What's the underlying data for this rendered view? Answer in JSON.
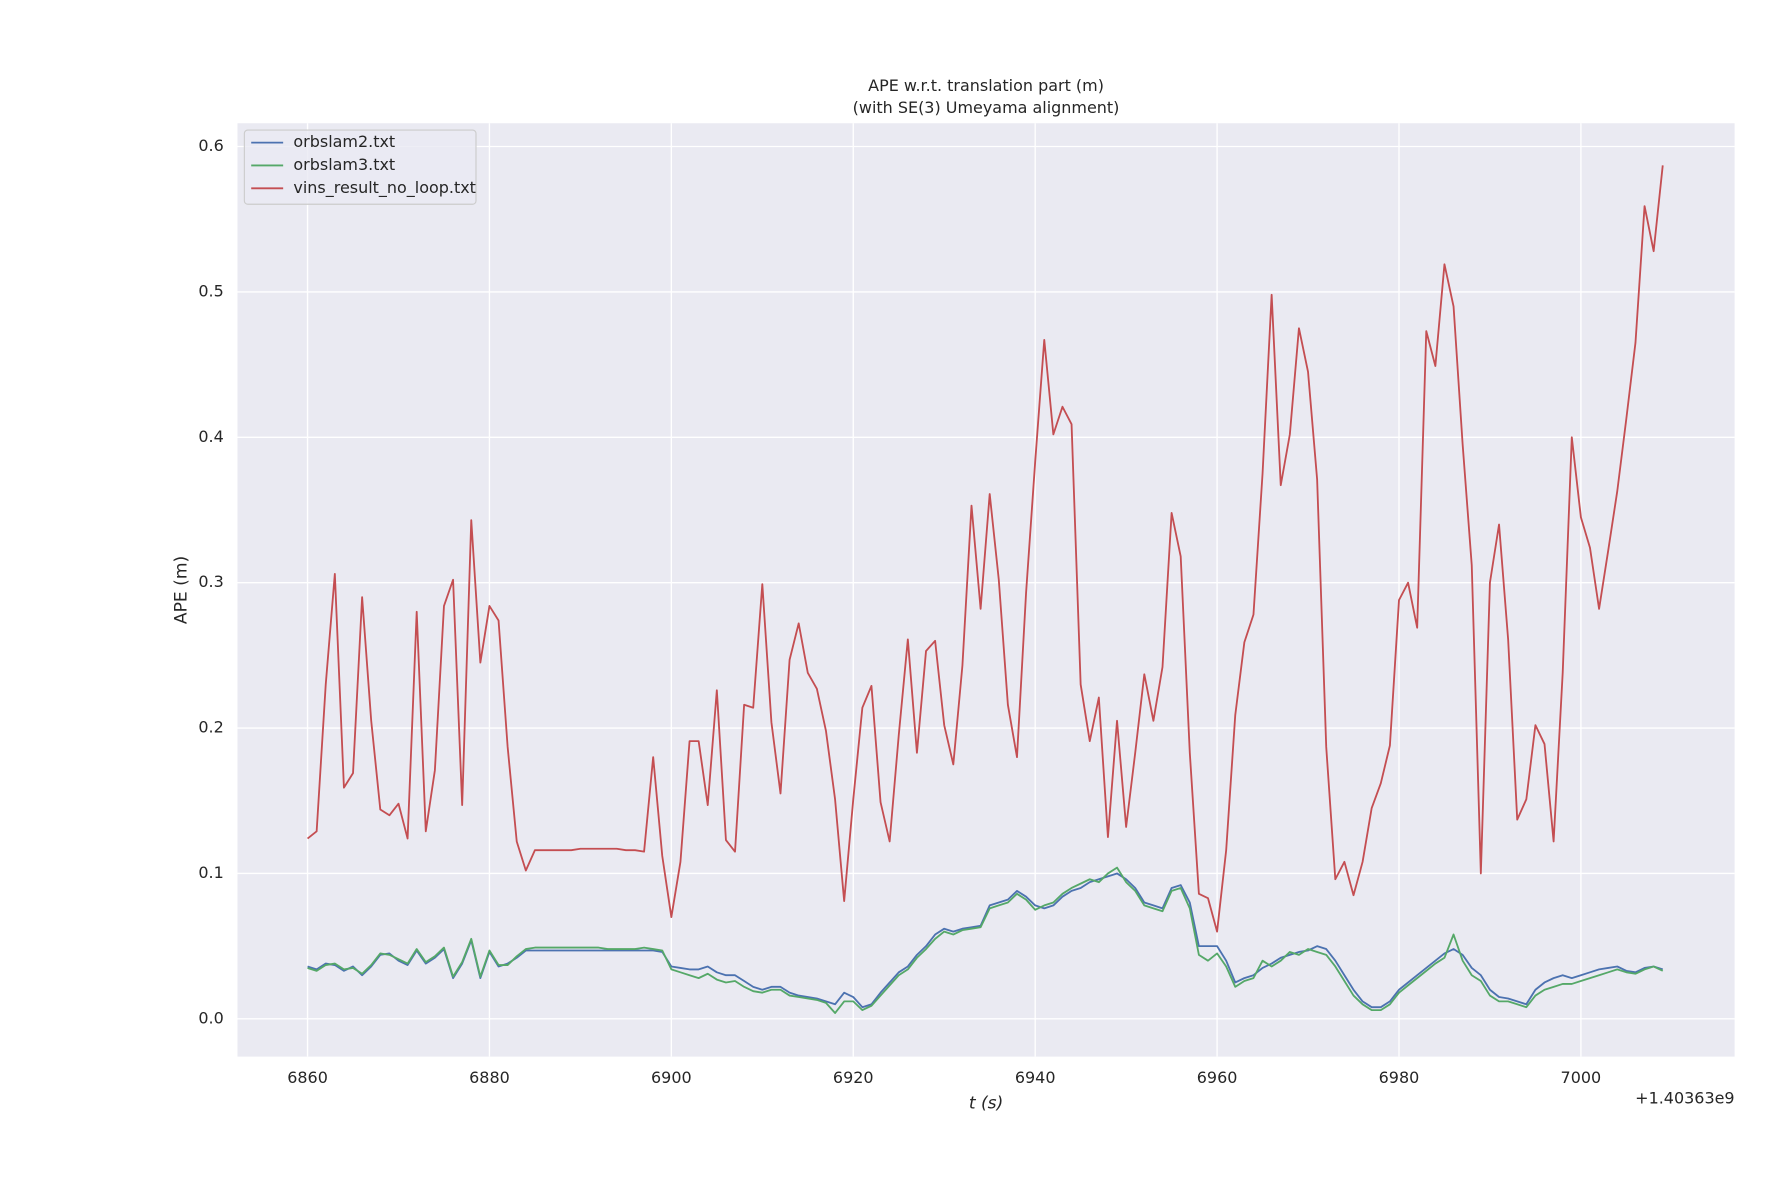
{
  "chart_data": {
    "type": "line",
    "title": "APE w.r.t. translation part (m)",
    "subtitle": "(with SE(3) Umeyama alignment)",
    "x_label": "t (s)",
    "y_label": "APE (m)",
    "x_offset_label": "+1.40363e9",
    "xlim": [
      6852.3,
      7016.9
    ],
    "ylim": [
      -0.026,
      0.616
    ],
    "xticks": [
      6860,
      6880,
      6900,
      6920,
      6940,
      6960,
      6980,
      7000
    ],
    "yticks": [
      {
        "value": 0,
        "label": "0.0"
      },
      0.1,
      0.2,
      0.3,
      0.4,
      0.5,
      0.6
    ],
    "grid": true,
    "legend": "upper left",
    "x": [
      6860,
      6861,
      6862,
      6863,
      6864,
      6865,
      6866,
      6867,
      6868,
      6869,
      6870,
      6871,
      6872,
      6873,
      6874,
      6875,
      6876,
      6877,
      6878,
      6879,
      6880,
      6881,
      6882,
      6883,
      6884,
      6885,
      6886,
      6887,
      6888,
      6889,
      6890,
      6891,
      6892,
      6893,
      6894,
      6895,
      6896,
      6897,
      6898,
      6899,
      6900,
      6901,
      6902,
      6903,
      6904,
      6905,
      6906,
      6907,
      6908,
      6909,
      6910,
      6911,
      6912,
      6913,
      6914,
      6915,
      6916,
      6917,
      6918,
      6919,
      6920,
      6921,
      6922,
      6923,
      6924,
      6925,
      6926,
      6927,
      6928,
      6929,
      6930,
      6931,
      6932,
      6933,
      6934,
      6935,
      6936,
      6937,
      6938,
      6939,
      6940,
      6941,
      6942,
      6943,
      6944,
      6945,
      6946,
      6947,
      6948,
      6949,
      6950,
      6951,
      6952,
      6953,
      6954,
      6955,
      6956,
      6957,
      6958,
      6959,
      6960,
      6961,
      6962,
      6963,
      6964,
      6965,
      6966,
      6967,
      6968,
      6969,
      6970,
      6971,
      6972,
      6973,
      6974,
      6975,
      6976,
      6977,
      6978,
      6979,
      6980,
      6981,
      6982,
      6983,
      6984,
      6985,
      6986,
      6987,
      6988,
      6989,
      6990,
      6991,
      6992,
      6993,
      6994,
      6995,
      6996,
      6997,
      6998,
      6999,
      7000,
      7001,
      7002,
      7003,
      7004,
      7005,
      7006,
      7007,
      7008,
      7009
    ],
    "series": [
      {
        "name": "orbslam2.txt",
        "color": "#4c72b0",
        "values": [
          0.036,
          0.034,
          0.038,
          0.037,
          0.033,
          0.036,
          0.03,
          0.036,
          0.044,
          0.045,
          0.04,
          0.037,
          0.047,
          0.038,
          0.042,
          0.048,
          0.028,
          0.038,
          0.054,
          0.028,
          0.046,
          0.036,
          0.038,
          0.042,
          0.047,
          0.047,
          0.047,
          0.047,
          0.047,
          0.047,
          0.047,
          0.047,
          0.047,
          0.047,
          0.047,
          0.047,
          0.047,
          0.047,
          0.047,
          0.046,
          0.036,
          0.035,
          0.034,
          0.034,
          0.036,
          0.032,
          0.03,
          0.03,
          0.026,
          0.022,
          0.02,
          0.022,
          0.022,
          0.018,
          0.016,
          0.015,
          0.014,
          0.012,
          0.01,
          0.018,
          0.015,
          0.008,
          0.01,
          0.018,
          0.025,
          0.032,
          0.036,
          0.044,
          0.05,
          0.058,
          0.062,
          0.06,
          0.062,
          0.063,
          0.064,
          0.078,
          0.08,
          0.082,
          0.088,
          0.084,
          0.078,
          0.076,
          0.078,
          0.084,
          0.088,
          0.09,
          0.094,
          0.096,
          0.098,
          0.1,
          0.096,
          0.09,
          0.08,
          0.078,
          0.076,
          0.09,
          0.092,
          0.08,
          0.05,
          0.05,
          0.05,
          0.04,
          0.025,
          0.028,
          0.03,
          0.035,
          0.038,
          0.042,
          0.044,
          0.046,
          0.047,
          0.05,
          0.048,
          0.04,
          0.03,
          0.02,
          0.012,
          0.008,
          0.008,
          0.012,
          0.02,
          0.025,
          0.03,
          0.035,
          0.04,
          0.045,
          0.048,
          0.044,
          0.035,
          0.03,
          0.02,
          0.015,
          0.014,
          0.012,
          0.01,
          0.02,
          0.025,
          0.028,
          0.03,
          0.028,
          0.03,
          0.032,
          0.034,
          0.035,
          0.036,
          0.033,
          0.032,
          0.035,
          0.036,
          0.034
        ]
      },
      {
        "name": "orbslam3.txt",
        "color": "#55a868",
        "values": [
          0.035,
          0.033,
          0.037,
          0.038,
          0.034,
          0.035,
          0.031,
          0.037,
          0.045,
          0.044,
          0.041,
          0.038,
          0.048,
          0.039,
          0.043,
          0.049,
          0.029,
          0.039,
          0.055,
          0.029,
          0.047,
          0.037,
          0.037,
          0.043,
          0.048,
          0.049,
          0.049,
          0.049,
          0.049,
          0.049,
          0.049,
          0.049,
          0.049,
          0.048,
          0.048,
          0.048,
          0.048,
          0.049,
          0.048,
          0.047,
          0.034,
          0.032,
          0.03,
          0.028,
          0.031,
          0.027,
          0.025,
          0.026,
          0.022,
          0.019,
          0.018,
          0.02,
          0.02,
          0.016,
          0.015,
          0.014,
          0.013,
          0.011,
          0.004,
          0.012,
          0.012,
          0.006,
          0.009,
          0.016,
          0.023,
          0.03,
          0.034,
          0.042,
          0.048,
          0.055,
          0.06,
          0.058,
          0.061,
          0.062,
          0.063,
          0.076,
          0.078,
          0.08,
          0.086,
          0.082,
          0.075,
          0.078,
          0.08,
          0.086,
          0.09,
          0.093,
          0.096,
          0.094,
          0.1,
          0.104,
          0.094,
          0.088,
          0.078,
          0.076,
          0.074,
          0.088,
          0.09,
          0.076,
          0.044,
          0.04,
          0.045,
          0.036,
          0.022,
          0.026,
          0.028,
          0.04,
          0.036,
          0.04,
          0.046,
          0.044,
          0.048,
          0.046,
          0.044,
          0.036,
          0.026,
          0.016,
          0.01,
          0.006,
          0.006,
          0.01,
          0.018,
          0.023,
          0.028,
          0.033,
          0.038,
          0.042,
          0.058,
          0.04,
          0.03,
          0.026,
          0.016,
          0.012,
          0.012,
          0.01,
          0.008,
          0.016,
          0.02,
          0.022,
          0.024,
          0.024,
          0.026,
          0.028,
          0.03,
          0.032,
          0.034,
          0.032,
          0.031,
          0.034,
          0.036,
          0.033
        ]
      },
      {
        "name": "vins_result_no_loop.txt",
        "color": "#c44e52",
        "values": [
          0.124,
          0.129,
          0.23,
          0.306,
          0.159,
          0.169,
          0.29,
          0.205,
          0.144,
          0.14,
          0.148,
          0.124,
          0.28,
          0.129,
          0.171,
          0.284,
          0.302,
          0.147,
          0.343,
          0.245,
          0.284,
          0.274,
          0.187,
          0.122,
          0.102,
          0.116,
          0.116,
          0.116,
          0.116,
          0.116,
          0.117,
          0.117,
          0.117,
          0.117,
          0.117,
          0.116,
          0.116,
          0.115,
          0.18,
          0.112,
          0.07,
          0.108,
          0.191,
          0.191,
          0.147,
          0.226,
          0.123,
          0.115,
          0.216,
          0.214,
          0.299,
          0.204,
          0.155,
          0.247,
          0.272,
          0.238,
          0.227,
          0.198,
          0.151,
          0.081,
          0.151,
          0.214,
          0.229,
          0.149,
          0.122,
          0.195,
          0.261,
          0.183,
          0.253,
          0.26,
          0.202,
          0.175,
          0.243,
          0.353,
          0.282,
          0.361,
          0.302,
          0.216,
          0.18,
          0.293,
          0.383,
          0.467,
          0.402,
          0.421,
          0.409,
          0.23,
          0.191,
          0.221,
          0.125,
          0.205,
          0.132,
          0.183,
          0.237,
          0.205,
          0.242,
          0.348,
          0.318,
          0.183,
          0.086,
          0.083,
          0.06,
          0.116,
          0.209,
          0.259,
          0.278,
          0.375,
          0.498,
          0.367,
          0.402,
          0.475,
          0.445,
          0.371,
          0.187,
          0.096,
          0.108,
          0.085,
          0.108,
          0.145,
          0.162,
          0.188,
          0.288,
          0.3,
          0.269,
          0.473,
          0.449,
          0.519,
          0.49,
          0.395,
          0.312,
          0.1,
          0.3,
          0.34,
          0.261,
          0.137,
          0.151,
          0.202,
          0.189,
          0.122,
          0.238,
          0.4,
          0.345,
          0.324,
          0.282,
          0.322,
          0.363,
          0.413,
          0.465,
          0.559,
          0.528,
          0.587
        ]
      }
    ]
  }
}
